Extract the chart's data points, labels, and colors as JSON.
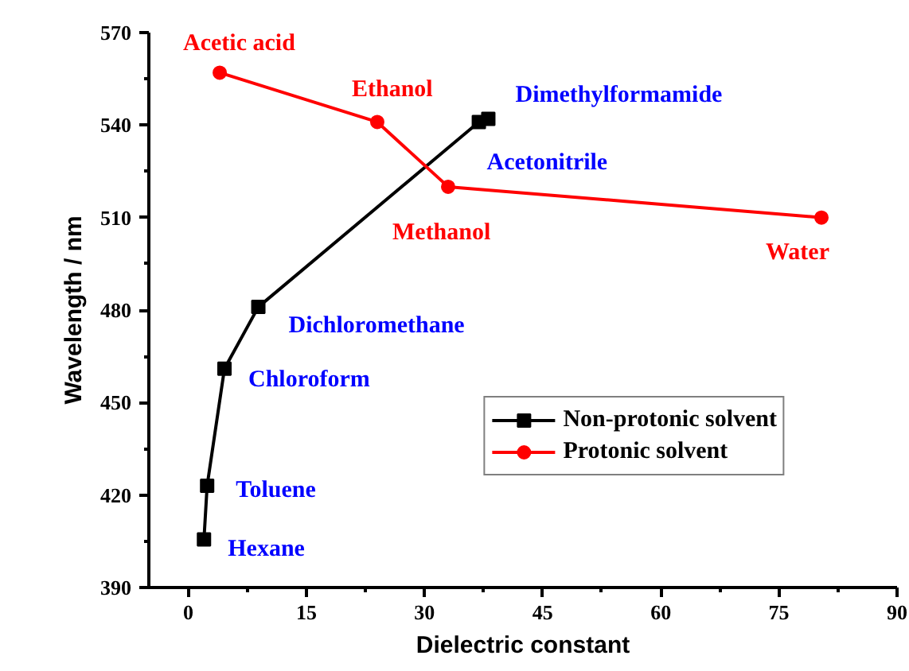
{
  "chart_data": {
    "type": "line",
    "xlabel": "Dielectric constant",
    "ylabel": "Wavelength / nm",
    "xlim": [
      -5,
      90
    ],
    "xticks": [
      0,
      15,
      30,
      45,
      60,
      75,
      90
    ],
    "ylim": [
      390,
      570
    ],
    "yticks": [
      390,
      420,
      450,
      480,
      510,
      540,
      570
    ],
    "grid": false,
    "legend": "bottom right",
    "line_style": "solid",
    "series": [
      {
        "name": "Non-protonic solvent",
        "color": "#000000",
        "marker": "square",
        "x": [
          2.0,
          2.4,
          4.6,
          8.9,
          36.9,
          38.1
        ],
        "values": [
          405.6,
          423,
          461,
          481,
          541,
          542
        ],
        "value_labels": [
          "Hexane",
          "Toluene",
          "Chloroform",
          "Dichloromethane",
          "Acetonitrile",
          "Dimethylformamide"
        ]
      },
      {
        "name": "Protonic solvent",
        "color": "#ff0000",
        "marker": "circle",
        "x": [
          4.0,
          24.0,
          33.0,
          80.4
        ],
        "values": [
          557,
          541,
          520,
          510
        ],
        "value_labels": [
          "Acetic acid",
          "Ethanol",
          "Methanol",
          "Water"
        ]
      }
    ]
  }
}
